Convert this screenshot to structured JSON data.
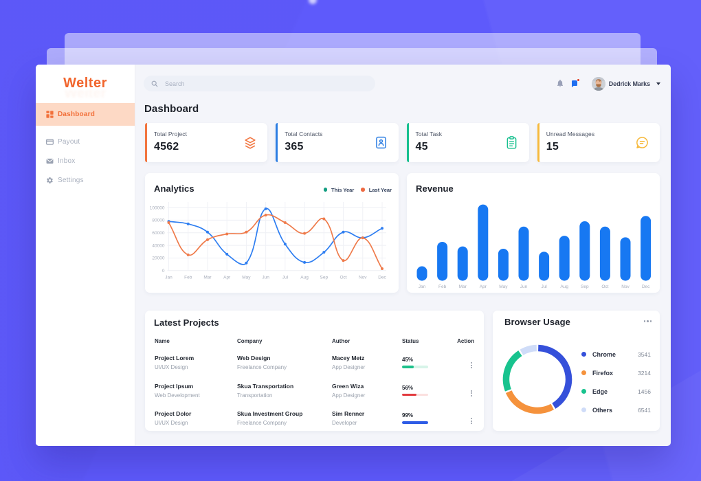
{
  "background": {
    "desktop_color": "#5a57f2",
    "sheet_color": "rgba(255,255,255,0.35)"
  },
  "sidebar": {
    "logo": "Welter",
    "items": [
      {
        "id": "dashboard",
        "label": "Dashboard",
        "active": true
      },
      {
        "id": "payout",
        "label": "Payout",
        "active": false
      },
      {
        "id": "inbox",
        "label": "Inbox",
        "active": false
      },
      {
        "id": "settings",
        "label": "Settings",
        "active": false
      }
    ]
  },
  "topbar": {
    "search_placeholder": "Search",
    "user_name": "Dedrick Marks",
    "icons": [
      "bell-icon",
      "chat-notification-icon",
      "avatar",
      "caret-down-icon"
    ]
  },
  "page": {
    "title": "Dashboard"
  },
  "stats": [
    {
      "label": "Total Project",
      "value": "4562",
      "accent": "#f2753f",
      "icon": "layers-icon"
    },
    {
      "label": "Total Contacts",
      "value": "365",
      "accent": "#2b7de2",
      "icon": "contact-book-icon"
    },
    {
      "label": "Total Task",
      "value": "45",
      "accent": "#18c08f",
      "icon": "clipboard-icon"
    },
    {
      "label": "Unread Messages",
      "value": "15",
      "accent": "#f6b93c",
      "icon": "chat-bubble-icon"
    }
  ],
  "chart_data": [
    {
      "id": "analytics",
      "type": "line",
      "title": "Analytics",
      "categories": [
        "Jan",
        "Feb",
        "Mar",
        "Apr",
        "May",
        "Jun",
        "Jul",
        "Aug",
        "Sep",
        "Oct",
        "Nov",
        "Dec"
      ],
      "series": [
        {
          "name": "This Year",
          "color": "#2e7ef1",
          "legend_color": "#149e82",
          "values": [
            78000,
            74000,
            61000,
            26000,
            12000,
            98000,
            42000,
            13000,
            29000,
            61000,
            52000,
            67000
          ]
        },
        {
          "name": "Last Year",
          "color": "#ef7b4b",
          "legend_color": "#ee6a42",
          "values": [
            76000,
            25000,
            49000,
            58000,
            61000,
            88000,
            76000,
            59000,
            82000,
            16000,
            52000,
            3000
          ]
        }
      ],
      "ylim": [
        0,
        100000
      ],
      "yticks": [
        0,
        20000,
        40000,
        60000,
        80000,
        100000
      ],
      "grid": true,
      "legend_position": "top-right"
    },
    {
      "id": "revenue",
      "type": "bar",
      "title": "Revenue",
      "categories": [
        "Jan",
        "Feb",
        "Mar",
        "Apr",
        "May",
        "Jun",
        "Jul",
        "Aug",
        "Sep",
        "Oct",
        "Nov",
        "Dec"
      ],
      "values": [
        19,
        51,
        45,
        100,
        42,
        71,
        38,
        59,
        78,
        71,
        57,
        85
      ],
      "ylim": [
        0,
        100
      ],
      "color": "#1778f2",
      "grid": false
    },
    {
      "id": "browser",
      "type": "donut",
      "title": "Browser Usage",
      "menu": "...",
      "segments": [
        {
          "label": "Chrome",
          "value": "3541",
          "color": "#3550da",
          "arc_degrees": 147
        },
        {
          "label": "Firefox",
          "value": "3214",
          "color": "#f5923c",
          "arc_degrees": 95
        },
        {
          "label": "Edge",
          "value": "1456",
          "color": "#18c38e",
          "arc_degrees": 77
        },
        {
          "label": "Others",
          "value": "6541",
          "color": "#cfdcf8",
          "arc_degrees": 29
        }
      ],
      "gap_degrees": 3
    }
  ],
  "projects": {
    "title": "Latest Projects",
    "headers": [
      "Name",
      "Company",
      "Author",
      "Status",
      "Action"
    ],
    "rows": [
      {
        "name": "Project Lorem",
        "name_sub": "UI/UX Design",
        "company": "Web Design",
        "company_sub": "Freelance Company",
        "author": "Macey Metz",
        "author_sub": "App Designer",
        "status_pct": "45%",
        "status_value": 45,
        "status_color": "#1ec18b",
        "status_track": "#d7f4e9"
      },
      {
        "name": "Project Ipsum",
        "name_sub": "Web Development",
        "company": "Skua Transportation",
        "company_sub": "Transportation",
        "author": "Green Wiza",
        "author_sub": "App Designer",
        "status_pct": "56%",
        "status_value": 56,
        "status_color": "#e23a3e",
        "status_track": "#fbe0df"
      },
      {
        "name": "Project Dolor",
        "name_sub": "UI/UX Design",
        "company": "Skua Investment Group",
        "company_sub": "Freelance Company",
        "author": "Sim Renner",
        "author_sub": "Developer",
        "status_pct": "99%",
        "status_value": 99,
        "status_color": "#2e5ce6",
        "status_track": "#dde5fb"
      }
    ]
  }
}
